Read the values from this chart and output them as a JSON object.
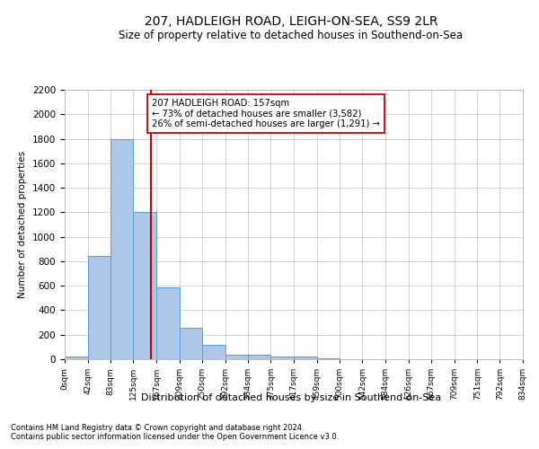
{
  "title": "207, HADLEIGH ROAD, LEIGH-ON-SEA, SS9 2LR",
  "subtitle": "Size of property relative to detached houses in Southend-on-Sea",
  "xlabel": "Distribution of detached houses by size in Southend-on-Sea",
  "ylabel": "Number of detached properties",
  "annotation_line1": "207 HADLEIGH ROAD: 157sqm",
  "annotation_line2": "← 73% of detached houses are smaller (3,582)",
  "annotation_line3": "26% of semi-detached houses are larger (1,291) →",
  "footer_line1": "Contains HM Land Registry data © Crown copyright and database right 2024.",
  "footer_line2": "Contains public sector information licensed under the Open Government Licence v3.0.",
  "property_size": 157,
  "bar_color": "#aec6e8",
  "bar_edge_color": "#5a9fd4",
  "vline_color": "#cc0000",
  "annotation_box_color": "#cc0000",
  "background_color": "#ffffff",
  "grid_color": "#cccccc",
  "bin_edges": [
    0,
    42,
    83,
    125,
    167,
    209,
    250,
    292,
    334,
    375,
    417,
    459,
    500,
    542,
    584,
    626,
    667,
    709,
    751,
    792,
    834
  ],
  "bar_heights": [
    20,
    840,
    1800,
    1200,
    590,
    255,
    120,
    40,
    40,
    25,
    20,
    10,
    0,
    0,
    0,
    0,
    0,
    0,
    0,
    0
  ],
  "ylim": [
    0,
    2200
  ],
  "yticks": [
    0,
    200,
    400,
    600,
    800,
    1000,
    1200,
    1400,
    1600,
    1800,
    2000,
    2200
  ]
}
